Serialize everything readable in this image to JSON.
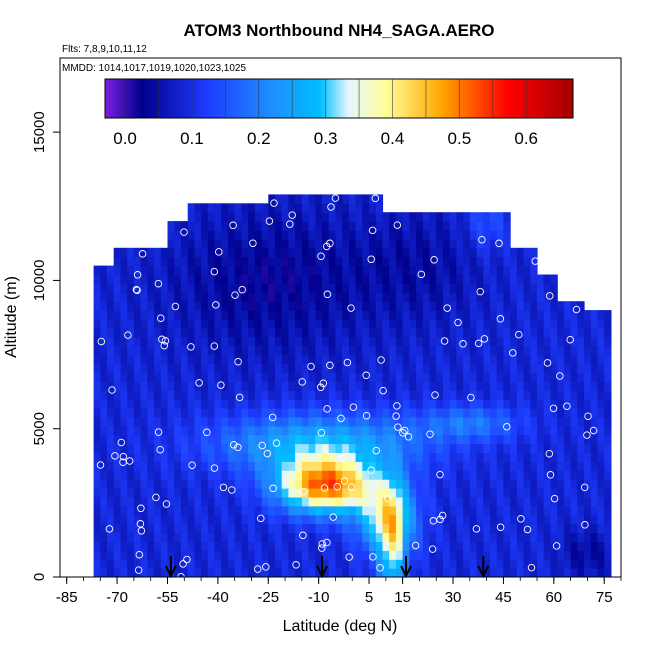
{
  "chart_data": {
    "type": "heatmap",
    "title": "ATOM3 Northbound NH4_SAGA.AERO",
    "subtitle_flights": "Flts: 7,8,9,10,11,12",
    "subtitle_dates": "MMDD: 1014,1017,1019,1020,1023,1025",
    "xlabel": "Latitude (deg N)",
    "ylabel": "Altitude (m)",
    "xlim": [
      -87,
      80
    ],
    "ylim": [
      0,
      17500
    ],
    "x_ticks": [
      -85,
      -70,
      -55,
      -40,
      -25,
      -10,
      5,
      15,
      30,
      45,
      60,
      75
    ],
    "y_ticks": [
      0,
      5000,
      10000,
      15000
    ],
    "colorbar": {
      "range": [
        -0.03,
        0.67
      ],
      "ticks": [
        0.0,
        0.1,
        0.2,
        0.3,
        0.4,
        0.5,
        0.6
      ],
      "tick_labels": [
        "0.0",
        "0.1",
        "0.2",
        "0.3",
        "0.4",
        "0.5",
        "0.6"
      ],
      "colors": [
        "#7b1fe0",
        "#00008b",
        "#1e3cff",
        "#1e90ff",
        "#00bfff",
        "#e6f6ff",
        "#ffff99",
        "#ffa500",
        "#ff0000",
        "#a30000"
      ]
    },
    "profile_markers_lat": [
      -54,
      -9,
      16,
      39
    ],
    "grid": false,
    "legend": "colorbar-top"
  }
}
